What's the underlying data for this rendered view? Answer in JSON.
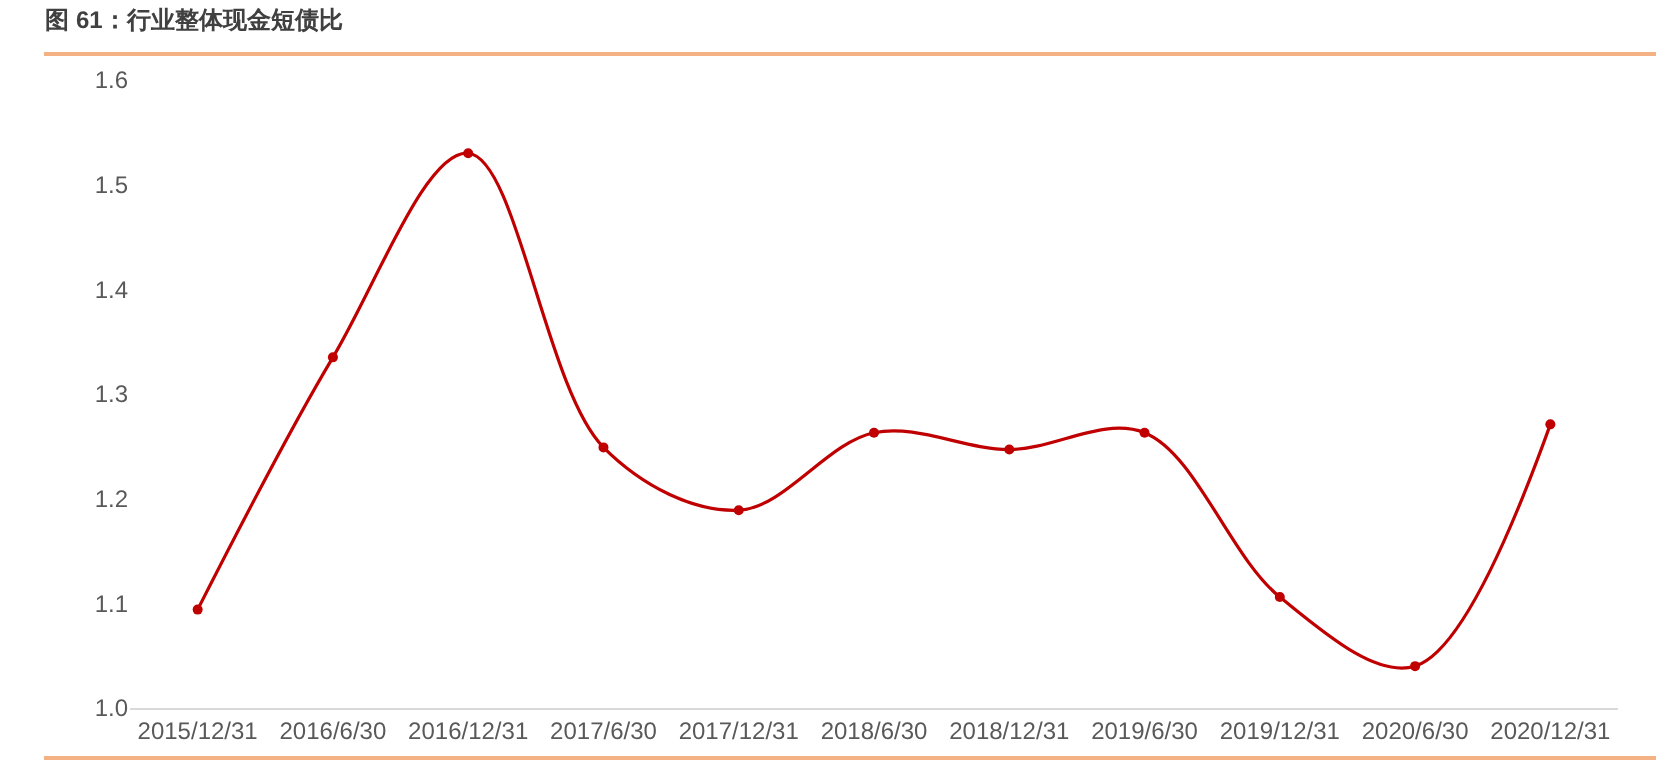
{
  "chart_data": {
    "type": "line",
    "title": "图 61：行业整体现金短债比",
    "categories": [
      "2015/12/31",
      "2016/6/30",
      "2016/12/31",
      "2017/6/30",
      "2017/12/31",
      "2018/6/30",
      "2018/12/31",
      "2019/6/30",
      "2019/12/31",
      "2020/6/30",
      "2020/12/31"
    ],
    "series": [
      {
        "color": "#c00000",
        "values": [
          1.094,
          1.335,
          1.53,
          1.249,
          1.189,
          1.263,
          1.247,
          1.263,
          1.106,
          1.04,
          1.271
        ]
      }
    ],
    "ylim": [
      1.0,
      1.6
    ],
    "yticks": [
      {
        "value": 1.0,
        "label": "1.0"
      },
      1.1,
      1.2,
      1.3,
      1.4,
      1.5,
      1.6
    ],
    "grid": false,
    "marker": "circle",
    "line_style": "solid"
  }
}
